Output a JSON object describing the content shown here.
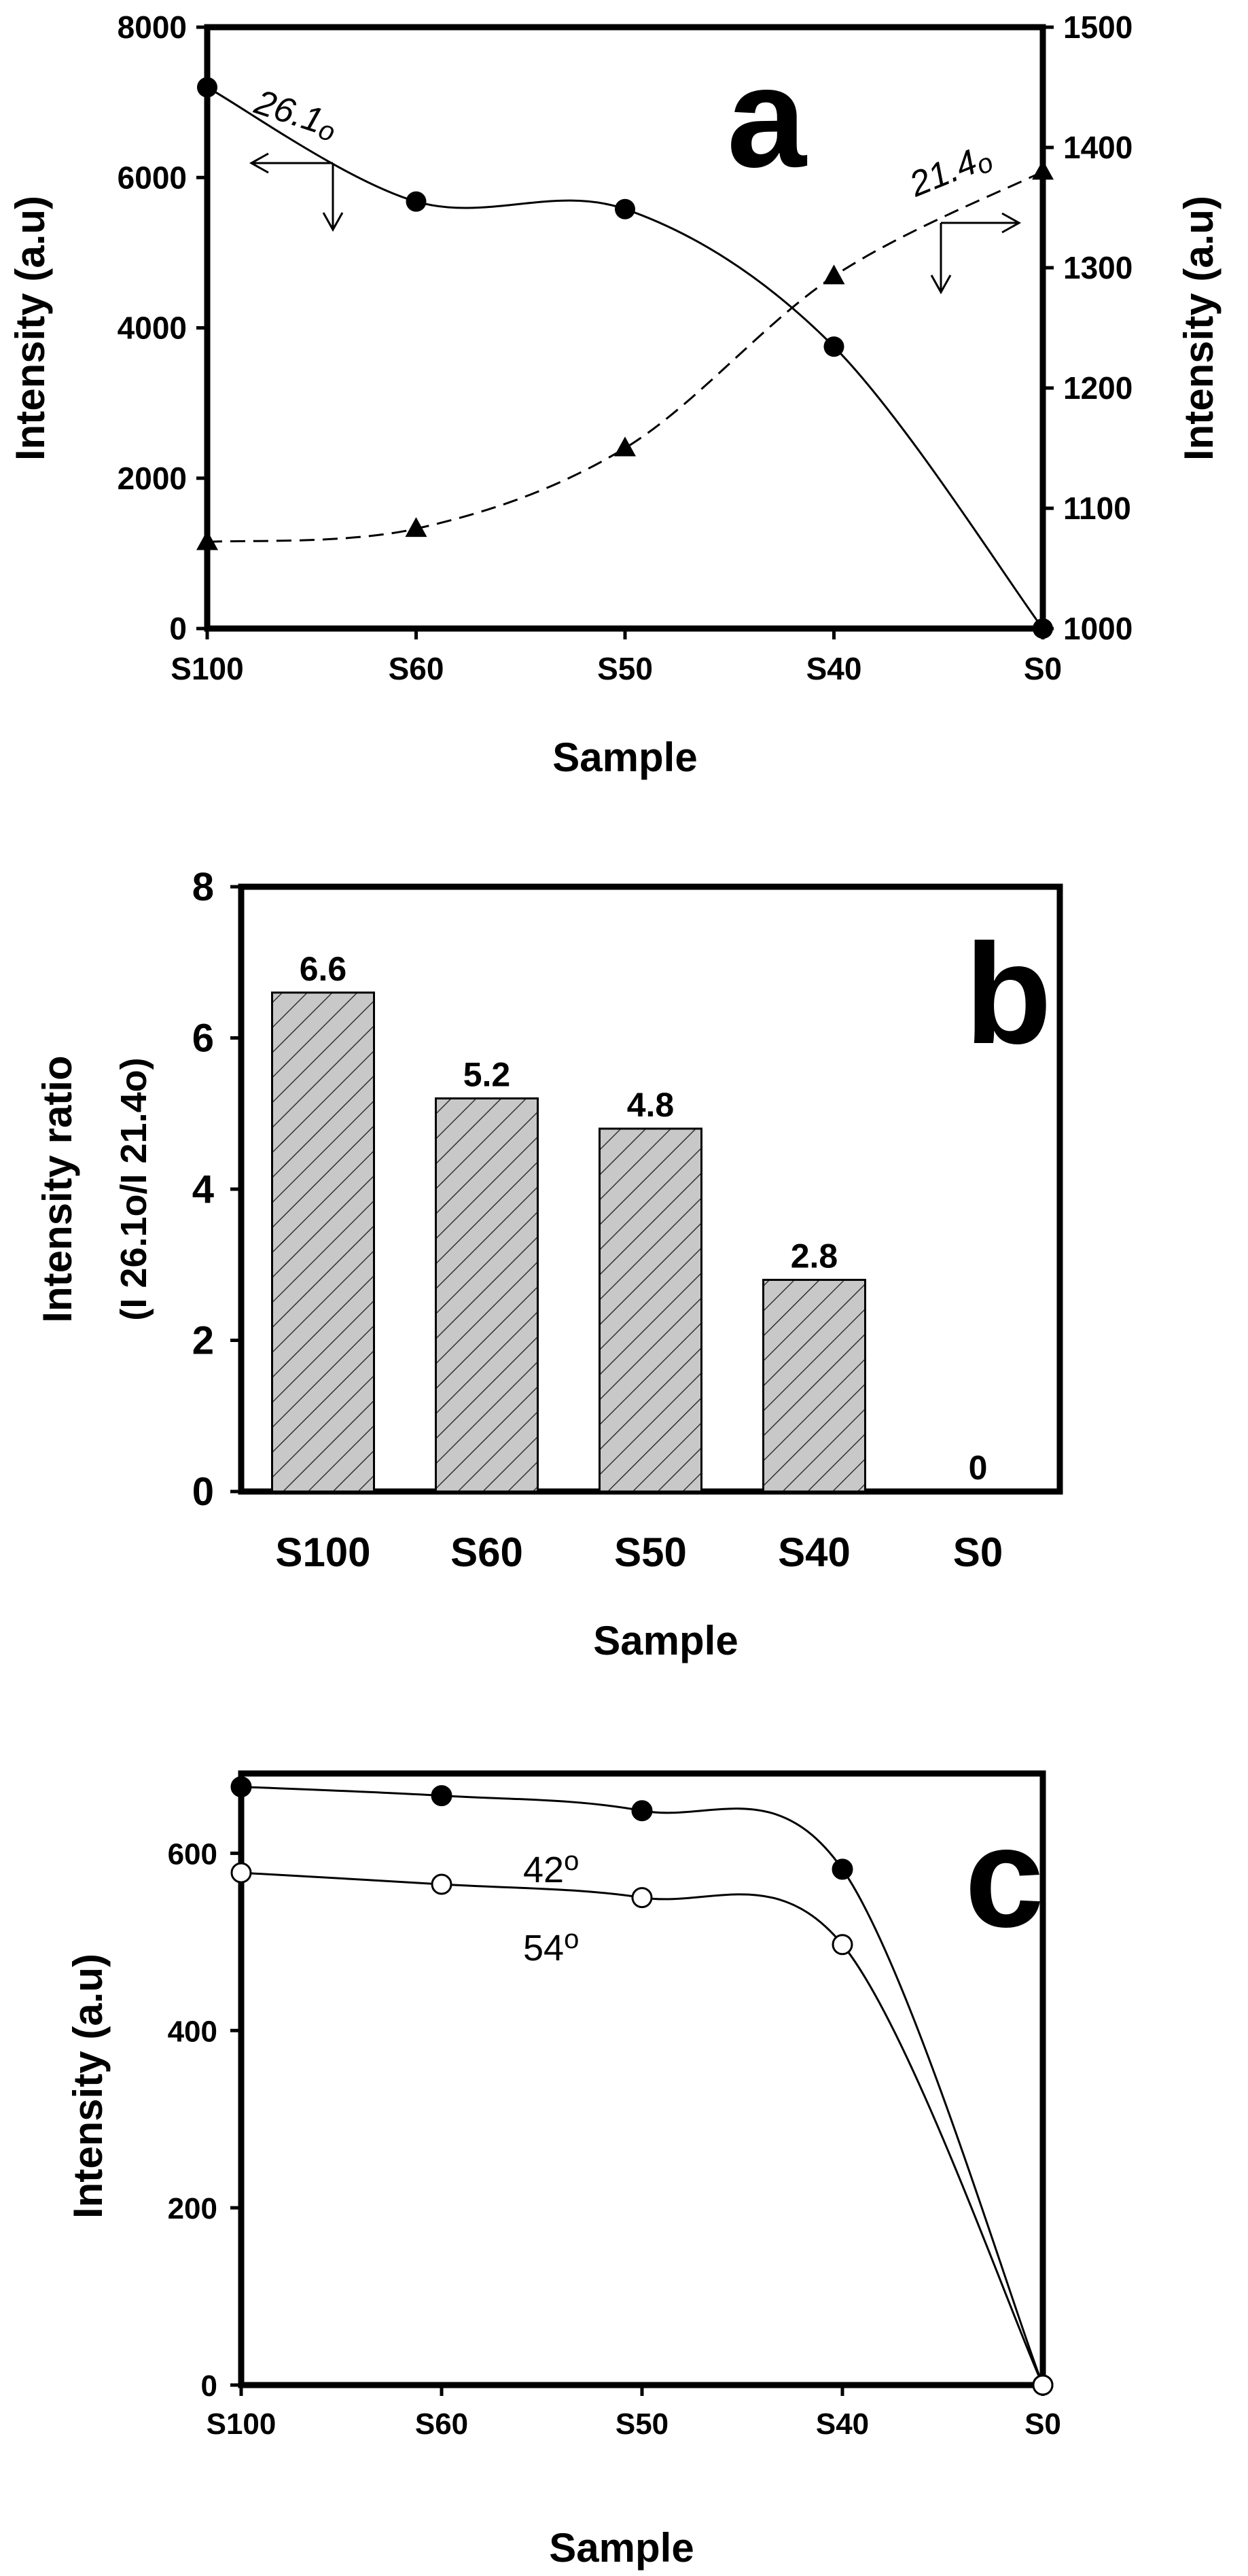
{
  "chart_data": [
    {
      "panel": "a",
      "type": "line",
      "categories": [
        "S100",
        "S60",
        "S50",
        "S40",
        "S0"
      ],
      "xlabel": "Sample",
      "ylabel_left": "Intensity (a.u)",
      "ylabel_right": "Intensity (a.u)",
      "ylim_left": [
        0,
        8000
      ],
      "yticks_left": [
        "0",
        "2000",
        "4000",
        "6000",
        "8000"
      ],
      "ylim_right": [
        1000,
        1500
      ],
      "yticks_right": [
        "1000",
        "1100",
        "1200",
        "1300",
        "1400",
        "1500"
      ],
      "series": [
        {
          "name": "26.1o",
          "label_main": "26.1",
          "label_sup": "o",
          "axis": "left",
          "marker": "circle",
          "line": "solid",
          "values": [
            7200,
            5680,
            5580,
            3750,
            0
          ]
        },
        {
          "name": "21.4o",
          "label_main": "21.4",
          "label_sup": "o",
          "axis": "right",
          "marker": "triangle",
          "line": "dashed",
          "values": [
            1072,
            1083,
            1150,
            1293,
            1380
          ]
        }
      ]
    },
    {
      "panel": "b",
      "type": "bar",
      "categories": [
        "S100",
        "S60",
        "S50",
        "S40",
        "S0"
      ],
      "values": [
        6.6,
        5.2,
        4.8,
        2.8,
        0
      ],
      "labels": [
        "6.6",
        "5.2",
        "4.8",
        "2.8",
        "0"
      ],
      "xlabel": "Sample",
      "ylabel_line1": "Intensity ratio",
      "ylabel_line2": "(I 26.1o/I 21.4o)",
      "ylim": [
        0,
        8
      ],
      "yticks": [
        "0",
        "2",
        "4",
        "6",
        "8"
      ]
    },
    {
      "panel": "c",
      "type": "line",
      "categories": [
        "S100",
        "S60",
        "S50",
        "S40",
        "S0"
      ],
      "xlabel": "Sample",
      "ylabel": "Intensity (a.u)",
      "ylim": [
        0,
        690
      ],
      "yticks": [
        "0",
        "200",
        "400",
        "600"
      ],
      "series": [
        {
          "name": "42o",
          "label_main": "42",
          "label_sup": "o",
          "marker": "filled-circle",
          "values": [
            675,
            665,
            648,
            582,
            0
          ]
        },
        {
          "name": "54o",
          "label_main": "54",
          "label_sup": "o",
          "marker": "open-circle",
          "values": [
            578,
            565,
            550,
            497,
            0
          ]
        }
      ]
    }
  ]
}
